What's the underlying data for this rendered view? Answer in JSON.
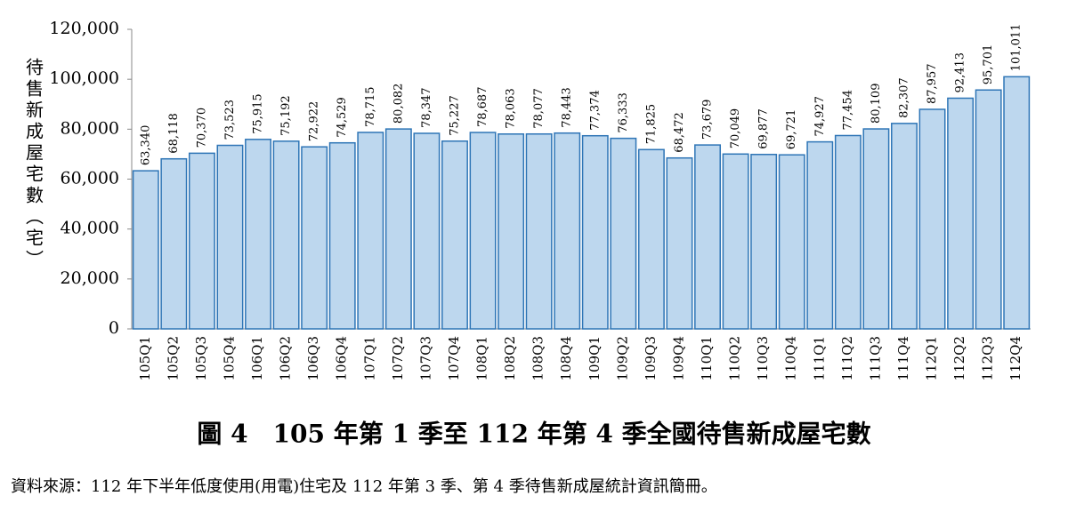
{
  "chart_data": {
    "type": "bar",
    "title": "圖 4　105 年第 1 季至 112 年第 4 季全國待售新成屋宅數",
    "source": "資料來源：112 年下半年低度使用(用電)住宅及 112 年第 3 季、第 4 季待售新成屋統計資訊簡冊。",
    "y_label": "待售新成屋宅數（宅）",
    "categories": [
      "105Q1",
      "105Q2",
      "105Q3",
      "105Q4",
      "106Q1",
      "106Q2",
      "106Q3",
      "106Q4",
      "107Q1",
      "107Q2",
      "107Q3",
      "107Q4",
      "108Q1",
      "108Q2",
      "108Q3",
      "108Q4",
      "109Q1",
      "109Q2",
      "109Q3",
      "109Q4",
      "110Q1",
      "110Q2",
      "110Q3",
      "110Q4",
      "111Q1",
      "111Q2",
      "111Q3",
      "111Q4",
      "112Q1",
      "112Q2",
      "112Q3",
      "112Q4"
    ],
    "values": [
      63340,
      68118,
      70370,
      73523,
      75915,
      75192,
      72922,
      74529,
      78715,
      80082,
      78347,
      75227,
      78687,
      78063,
      78077,
      78443,
      77374,
      76333,
      71825,
      68472,
      73679,
      70049,
      69877,
      69721,
      74927,
      77454,
      80109,
      82307,
      87957,
      92413,
      95701,
      101011
    ],
    "value_labels": [
      "63,340",
      "68,118",
      "70,370",
      "73,523",
      "75,915",
      "75,192",
      "72,922",
      "74,529",
      "78,715",
      "80,082",
      "78,347",
      "75,227",
      "78,687",
      "78,063",
      "78,077",
      "78,443",
      "77,374",
      "76,333",
      "71,825",
      "68,472",
      "73,679",
      "70,049",
      "69,877",
      "69,721",
      "74,927",
      "77,454",
      "80,109",
      "82,307",
      "87,957",
      "92,413",
      "95,701",
      "101,011"
    ],
    "color": "#bdd7ee",
    "edge_color": "#2e75b6",
    "ylim": [
      0,
      120000
    ],
    "yticks": [
      0,
      {
        "value": 20000,
        "label": "20,000"
      },
      {
        "value": 40000,
        "label": "40,000"
      },
      {
        "value": 60000,
        "label": "60,000"
      },
      {
        "value": 80000,
        "label": "80,000"
      },
      {
        "value": 100000,
        "label": "100,000"
      },
      {
        "value": 120000,
        "label": "120,000"
      }
    ],
    "grid": false
  }
}
